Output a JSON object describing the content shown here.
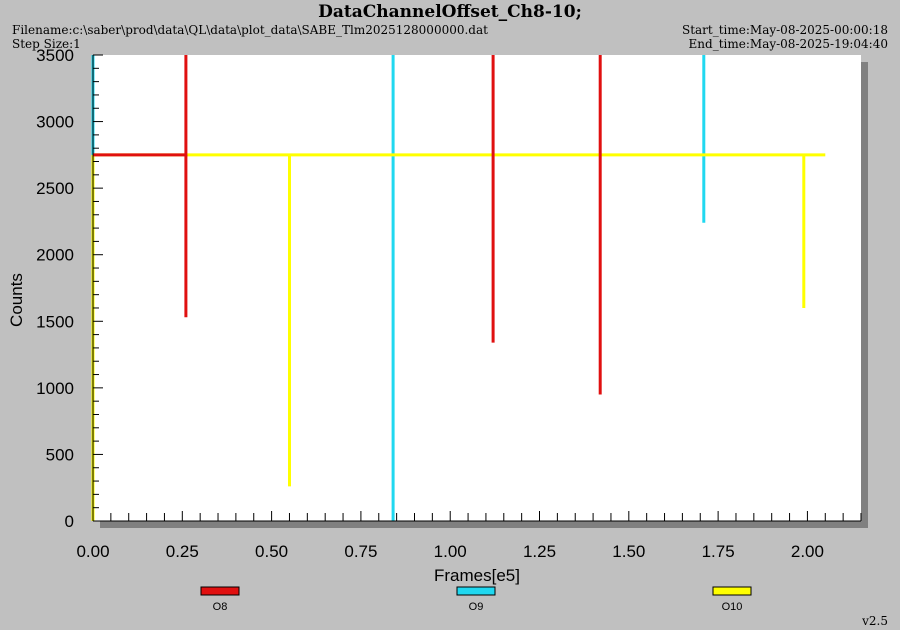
{
  "header": {
    "title": "DataChannelOffset_Ch8-10;",
    "filename": "Filename:c:\\saber\\prod\\data\\QL\\data\\plot_data\\SABE_Tlm2025128000000.dat",
    "step_size": "Step Size:1",
    "start_time": "Start_time:May-08-2025-00:00:18",
    "end_time": "End_time:May-08-2025-19:04:40"
  },
  "footer": {
    "version": "v2.5"
  },
  "colors": {
    "O8": "#e01010",
    "O9": "#20d8f0",
    "O10": "#ffff00",
    "plot_bg": "#ffffff",
    "frame": "#c0c0c0",
    "shadow": "#808080"
  },
  "chart_data": {
    "type": "line",
    "title": "DataChannelOffset_Ch8-10;",
    "xlabel": "Frames[e5]",
    "ylabel": "Counts",
    "xlim": [
      0,
      2.15
    ],
    "ylim": [
      0,
      3500
    ],
    "xticks": [
      "0.00",
      "0.25",
      "0.50",
      "0.75",
      "1.00",
      "1.25",
      "1.50",
      "1.75",
      "2.00"
    ],
    "yticks": [
      "0",
      "500",
      "1000",
      "1500",
      "2000",
      "2500",
      "3000",
      "3500"
    ],
    "legend_position": "bottom",
    "series": [
      {
        "name": "O8",
        "segments": [
          [
            [
              0,
              2750
            ],
            [
              0.26,
              2750
            ],
            [
              0.26,
              3500
            ]
          ],
          [
            [
              0.26,
              1530
            ],
            [
              0.26,
              2750
            ]
          ],
          [
            [
              1.12,
              1340
            ],
            [
              1.12,
              3500
            ]
          ],
          [
            [
              1.42,
              950
            ],
            [
              1.42,
              3500
            ]
          ]
        ]
      },
      {
        "name": "O9",
        "segments": [
          [
            [
              0,
              3500
            ],
            [
              0,
              0
            ]
          ],
          [
            [
              0.84,
              0
            ],
            [
              0.84,
              3500
            ]
          ],
          [
            [
              1.71,
              2240
            ],
            [
              1.71,
              3500
            ]
          ]
        ]
      },
      {
        "name": "O10",
        "segments": [
          [
            [
              0,
              2750
            ],
            [
              2.05,
              2750
            ]
          ],
          [
            [
              0.55,
              260
            ],
            [
              0.55,
              2750
            ]
          ],
          [
            [
              1.99,
              1600
            ],
            [
              1.99,
              2750
            ]
          ],
          [
            [
              0,
              2750
            ],
            [
              0,
              0
            ]
          ]
        ]
      }
    ]
  }
}
